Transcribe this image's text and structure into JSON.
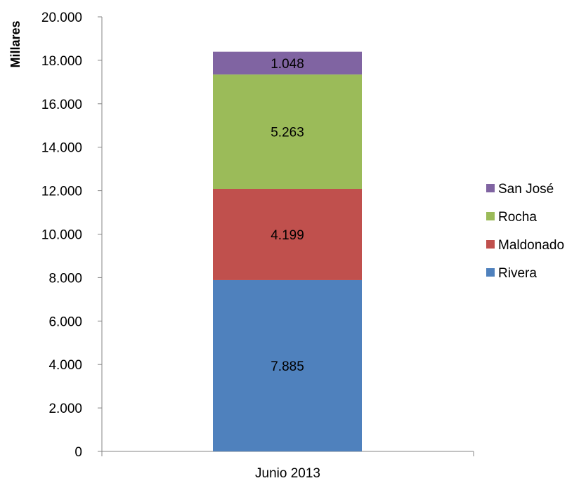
{
  "chart_data": {
    "type": "bar",
    "stacked": true,
    "categories": [
      "Junio 2013"
    ],
    "series": [
      {
        "name": "Rivera",
        "values": [
          7885
        ],
        "label": "7.885",
        "color": "#4f81bd"
      },
      {
        "name": "Maldonado",
        "values": [
          4199
        ],
        "label": "4.199",
        "color": "#c0504d"
      },
      {
        "name": "Rocha",
        "values": [
          5263
        ],
        "label": "5.263",
        "color": "#9bbb59"
      },
      {
        "name": "San José",
        "values": [
          1048
        ],
        "label": "1.048",
        "color": "#8064a2"
      }
    ],
    "ylabel": "Millares",
    "ylim": [
      0,
      20000
    ],
    "yticks": [
      0,
      2000,
      4000,
      6000,
      8000,
      10000,
      12000,
      14000,
      16000,
      18000,
      20000
    ],
    "ytick_labels": [
      "0",
      "2.000",
      "4.000",
      "6.000",
      "8.000",
      "10.000",
      "12.000",
      "14.000",
      "16.000",
      "18.000",
      "20.000"
    ],
    "legend_order": [
      "San José",
      "Rocha",
      "Maldonado",
      "Rivera"
    ],
    "legend_position": "right",
    "grid": false
  }
}
